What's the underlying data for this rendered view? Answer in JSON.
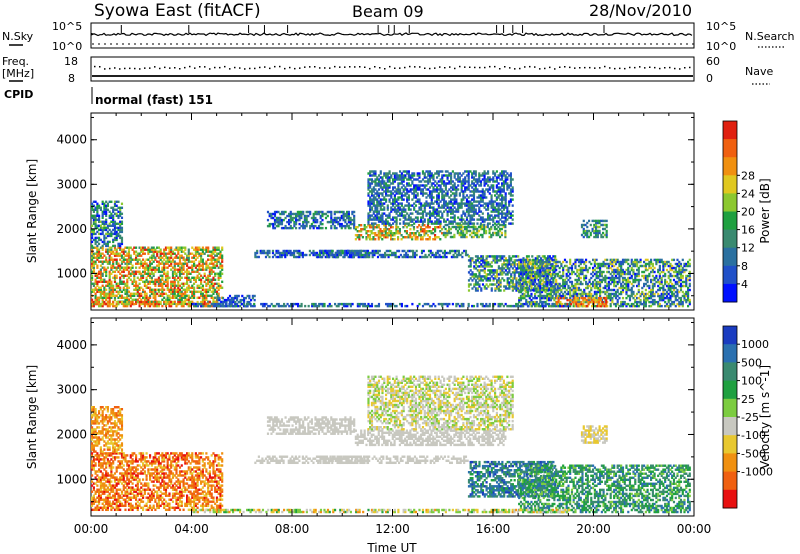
{
  "header": {
    "station": "Syowa East (fitACF)",
    "beam": "Beam 09",
    "date": "28/Nov/2010"
  },
  "top_panels": {
    "nsky_label": "N.Sky",
    "nsky_ticks": [
      "10^5",
      "10^0"
    ],
    "nsearch_label": "N.Search",
    "freq_label_1": "Freq.",
    "freq_label_2": "[MHz]",
    "freq_ticks": [
      "18",
      "8"
    ],
    "nave_ticks": [
      "60",
      "0"
    ],
    "nave_label": "Nave",
    "cpid_label": "CPID",
    "cpid_value": "normal (fast) 151"
  },
  "chart_data": [
    {
      "type": "heatmap",
      "panel": "power",
      "ylabel": "Slant Range [km]",
      "yticks": [
        1000,
        2000,
        3000,
        4000
      ],
      "ylim": [
        180,
        4600
      ],
      "xlim": [
        0,
        24
      ],
      "colorbar_label": "Power [dB]",
      "colorbar_ticks": [
        "4",
        "8",
        "12",
        "16",
        "20",
        "24",
        "28"
      ],
      "colorbar_colors": [
        "#0010ff",
        "#2050c8",
        "#2a70a0",
        "#3a8a70",
        "#1fa040",
        "#8cc830",
        "#e0c820",
        "#f09010",
        "#f06010",
        "#e02010"
      ],
      "regions": [
        {
          "t": [
            0.0,
            5.2
          ],
          "r": [
            300,
            1600
          ],
          "lvl": [
            3,
            9
          ]
        },
        {
          "t": [
            0.0,
            1.2
          ],
          "r": [
            1600,
            2600
          ],
          "lvl": [
            0,
            5
          ]
        },
        {
          "t": [
            0.0,
            5.0
          ],
          "r": [
            250,
            380
          ],
          "lvl": [
            5,
            9
          ]
        },
        {
          "t": [
            5.0,
            6.5
          ],
          "r": [
            250,
            500
          ],
          "lvl": [
            0,
            3
          ]
        },
        {
          "t": [
            6.5,
            11.0
          ],
          "r": [
            1350,
            1500
          ],
          "lvl": [
            0,
            3
          ]
        },
        {
          "t": [
            7.0,
            10.5
          ],
          "r": [
            2000,
            2400
          ],
          "lvl": [
            0,
            4
          ]
        },
        {
          "t": [
            10.5,
            14.0
          ],
          "r": [
            1750,
            2100
          ],
          "lvl": [
            3,
            9
          ]
        },
        {
          "t": [
            14.0,
            16.5
          ],
          "r": [
            1800,
            2100
          ],
          "lvl": [
            2,
            6
          ]
        },
        {
          "t": [
            11.0,
            16.8
          ],
          "r": [
            2100,
            3300
          ],
          "lvl": [
            0,
            4
          ]
        },
        {
          "t": [
            9.0,
            15.0
          ],
          "r": [
            1350,
            1500
          ],
          "lvl": [
            0,
            4
          ]
        },
        {
          "t": [
            15.0,
            18.5
          ],
          "r": [
            600,
            1400
          ],
          "lvl": [
            0,
            6
          ]
        },
        {
          "t": [
            17.0,
            23.8
          ],
          "r": [
            250,
            1300
          ],
          "lvl": [
            0,
            6
          ]
        },
        {
          "t": [
            18.5,
            20.5
          ],
          "r": [
            250,
            450
          ],
          "lvl": [
            6,
            9
          ]
        },
        {
          "t": [
            4.0,
            19.0
          ],
          "r": [
            250,
            330
          ],
          "lvl": [
            0,
            4
          ]
        },
        {
          "t": [
            19.5,
            20.5
          ],
          "r": [
            1800,
            2200
          ],
          "lvl": [
            1,
            5
          ]
        }
      ]
    },
    {
      "type": "heatmap",
      "panel": "velocity",
      "ylabel": "Slant Range [km]",
      "xlabel": "Time UT",
      "yticks": [
        1000,
        2000,
        3000,
        4000
      ],
      "ylim": [
        180,
        4600
      ],
      "xlim": [
        0,
        24
      ],
      "xticks": [
        "00:00",
        "04:00",
        "08:00",
        "12:00",
        "16:00",
        "20:00",
        "00:00"
      ],
      "colorbar_label": "Velocity [m s^-1]",
      "colorbar_ticks": [
        "1000",
        "500",
        "100",
        "25",
        "-25",
        "-100",
        "-500",
        "-1000"
      ],
      "colorbar_colors": [
        "#1a3cc0",
        "#2a70b0",
        "#3a8a70",
        "#1fa040",
        "#7ccc40",
        "#c8c8c0",
        "#e8c830",
        "#f09010",
        "#f06010",
        "#e81010"
      ],
      "regions": [
        {
          "t": [
            0.0,
            5.2
          ],
          "r": [
            300,
            1600
          ],
          "vel": [
            6,
            9
          ]
        },
        {
          "t": [
            0.0,
            1.2
          ],
          "r": [
            1600,
            2600
          ],
          "vel": [
            6,
            8
          ]
        },
        {
          "t": [
            6.5,
            11.0
          ],
          "r": [
            1350,
            1500
          ],
          "vel": [
            5,
            5
          ]
        },
        {
          "t": [
            7.0,
            10.5
          ],
          "r": [
            2000,
            2400
          ],
          "vel": [
            5,
            5
          ]
        },
        {
          "t": [
            10.5,
            16.5
          ],
          "r": [
            1750,
            2100
          ],
          "vel": [
            5,
            5
          ]
        },
        {
          "t": [
            11.0,
            16.8
          ],
          "r": [
            2100,
            3300
          ],
          "vel": [
            4,
            6
          ]
        },
        {
          "t": [
            9.0,
            15.0
          ],
          "r": [
            1350,
            1500
          ],
          "vel": [
            5,
            5
          ]
        },
        {
          "t": [
            15.0,
            18.5
          ],
          "r": [
            600,
            1400
          ],
          "vel": [
            0,
            3
          ]
        },
        {
          "t": [
            17.0,
            23.8
          ],
          "r": [
            250,
            1300
          ],
          "vel": [
            1,
            4
          ]
        },
        {
          "t": [
            4.0,
            19.0
          ],
          "r": [
            250,
            330
          ],
          "vel": [
            3,
            7
          ]
        },
        {
          "t": [
            19.5,
            20.5
          ],
          "r": [
            1800,
            2200
          ],
          "vel": [
            5,
            6
          ]
        }
      ]
    }
  ]
}
